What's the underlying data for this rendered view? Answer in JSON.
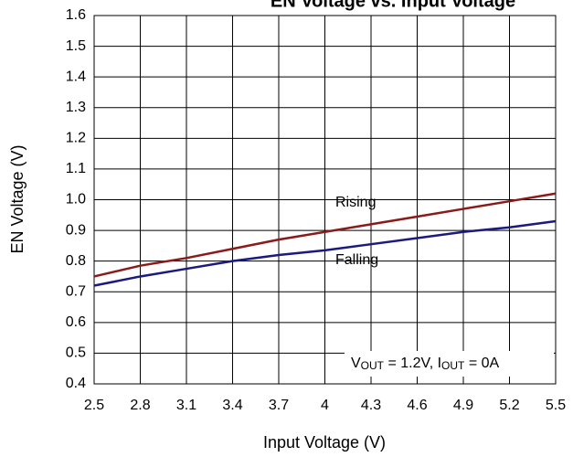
{
  "chart_data": {
    "type": "line",
    "title": "EN Voltage vs. Input Voltage",
    "x_label": "Input Voltage (V)",
    "y_label": "EN Voltage (V)",
    "x": [
      2.5,
      2.8,
      3.1,
      3.4,
      3.7,
      4,
      4.3,
      4.6,
      4.9,
      5.2,
      5.5
    ],
    "series": [
      {
        "name": "Rising",
        "color": "#8b1a1a",
        "values": [
          0.75,
          0.785,
          0.81,
          0.84,
          0.87,
          0.895,
          0.92,
          0.945,
          0.97,
          0.995,
          1.02
        ]
      },
      {
        "name": "Falling",
        "color": "#1a1a80",
        "values": [
          0.72,
          0.75,
          0.775,
          0.8,
          0.82,
          0.835,
          0.855,
          0.875,
          0.895,
          0.91,
          0.93
        ]
      }
    ],
    "annotation_parts": [
      {
        "text": "V"
      },
      {
        "text": "OUT",
        "sub": true
      },
      {
        "text": " = 1.2V, I"
      },
      {
        "text": "OUT",
        "sub": true
      },
      {
        "text": " = 0A"
      }
    ],
    "xlim": [
      2.5,
      5.5
    ],
    "xticks": [
      2.5,
      2.8,
      3.1,
      3.4,
      3.7,
      4,
      4.3,
      4.6,
      4.9,
      5.2,
      5.5
    ],
    "ylim": [
      0.4,
      1.6
    ],
    "yticks": [
      0.4,
      0.5,
      0.6,
      0.7,
      0.8,
      0.9,
      {
        "value": 1,
        "label": "1.0"
      },
      1.1,
      1.2,
      1.3,
      1.4,
      1.5,
      1.6
    ],
    "grid": true
  }
}
